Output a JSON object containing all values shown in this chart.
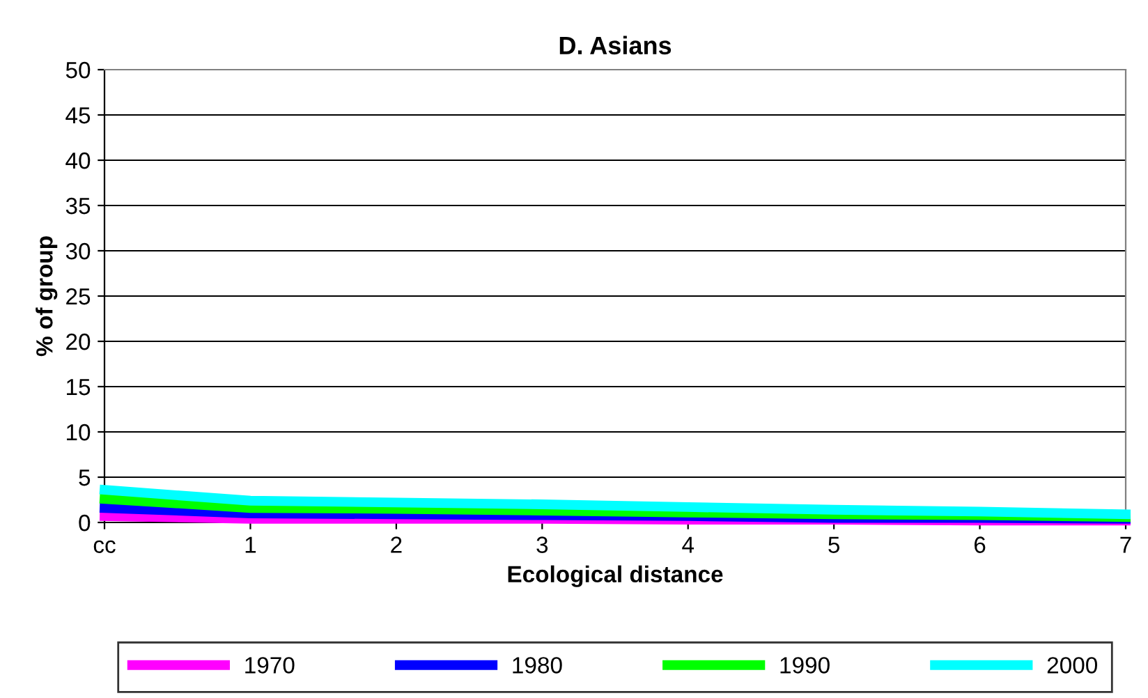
{
  "chart_data": {
    "type": "line",
    "title": "D. Asians",
    "xlabel": "Ecological distance",
    "ylabel": "% of group",
    "categories": [
      "cc",
      "1",
      "2",
      "3",
      "4",
      "5",
      "6",
      "7"
    ],
    "series": [
      {
        "name": "1970",
        "color": "#ff00ff",
        "values": [
          0.7,
          0.4,
          0.4,
          0.4,
          0.3,
          0.3,
          0.2,
          0.2
        ]
      },
      {
        "name": "1980",
        "color": "#0000ff",
        "values": [
          1.6,
          1.0,
          0.9,
          0.8,
          0.7,
          0.5,
          0.5,
          0.4
        ]
      },
      {
        "name": "1990",
        "color": "#00ff00",
        "values": [
          2.6,
          1.6,
          1.5,
          1.3,
          1.1,
          0.9,
          0.8,
          0.6
        ]
      },
      {
        "name": "2000",
        "color": "#00ffff",
        "values": [
          3.6,
          2.4,
          2.2,
          2.0,
          1.7,
          1.4,
          1.2,
          0.9
        ]
      }
    ],
    "ylim": [
      0,
      50
    ],
    "yticks": [
      0,
      5,
      10,
      15,
      20,
      25,
      30,
      35,
      40,
      45,
      50
    ],
    "grid": "y",
    "legend": "bottom",
    "marker": "none",
    "line_style": "solid"
  }
}
